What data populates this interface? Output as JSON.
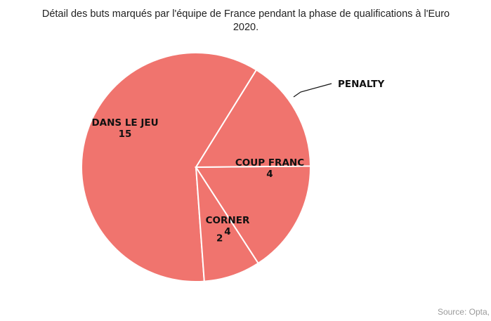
{
  "chart_data": {
    "type": "pie",
    "title": "Détail des buts marqués par l'équipe de France pendant la phase de qualifications à l'Euro 2020.",
    "source": "Source: Opta,",
    "slices": [
      {
        "label": "DANS LE JEU",
        "value": 15
      },
      {
        "label": "PENALTY",
        "value": 2
      },
      {
        "label": "COUP FRANC",
        "value": 4
      },
      {
        "label": "CORNER",
        "value": 4
      }
    ],
    "slice_color": "#f0746e",
    "border_color": "#ffffff",
    "value_display": "value",
    "legend": false
  }
}
